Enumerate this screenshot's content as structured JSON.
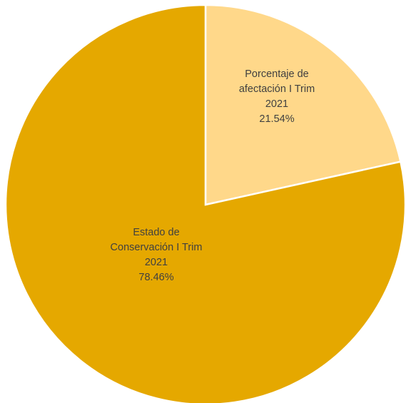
{
  "chart_data": {
    "type": "pie",
    "title": "",
    "slices": [
      {
        "label_lines": [
          "Porcentaje de",
          "afectación I Trim",
          "2021"
        ],
        "value": 21.54,
        "value_label": "21.54%",
        "color": "#FFD88A"
      },
      {
        "label_lines": [
          "Estado de",
          "Conservación I Trim",
          "2021"
        ],
        "value": 78.46,
        "value_label": "78.46%",
        "color": "#E5A800"
      }
    ]
  }
}
